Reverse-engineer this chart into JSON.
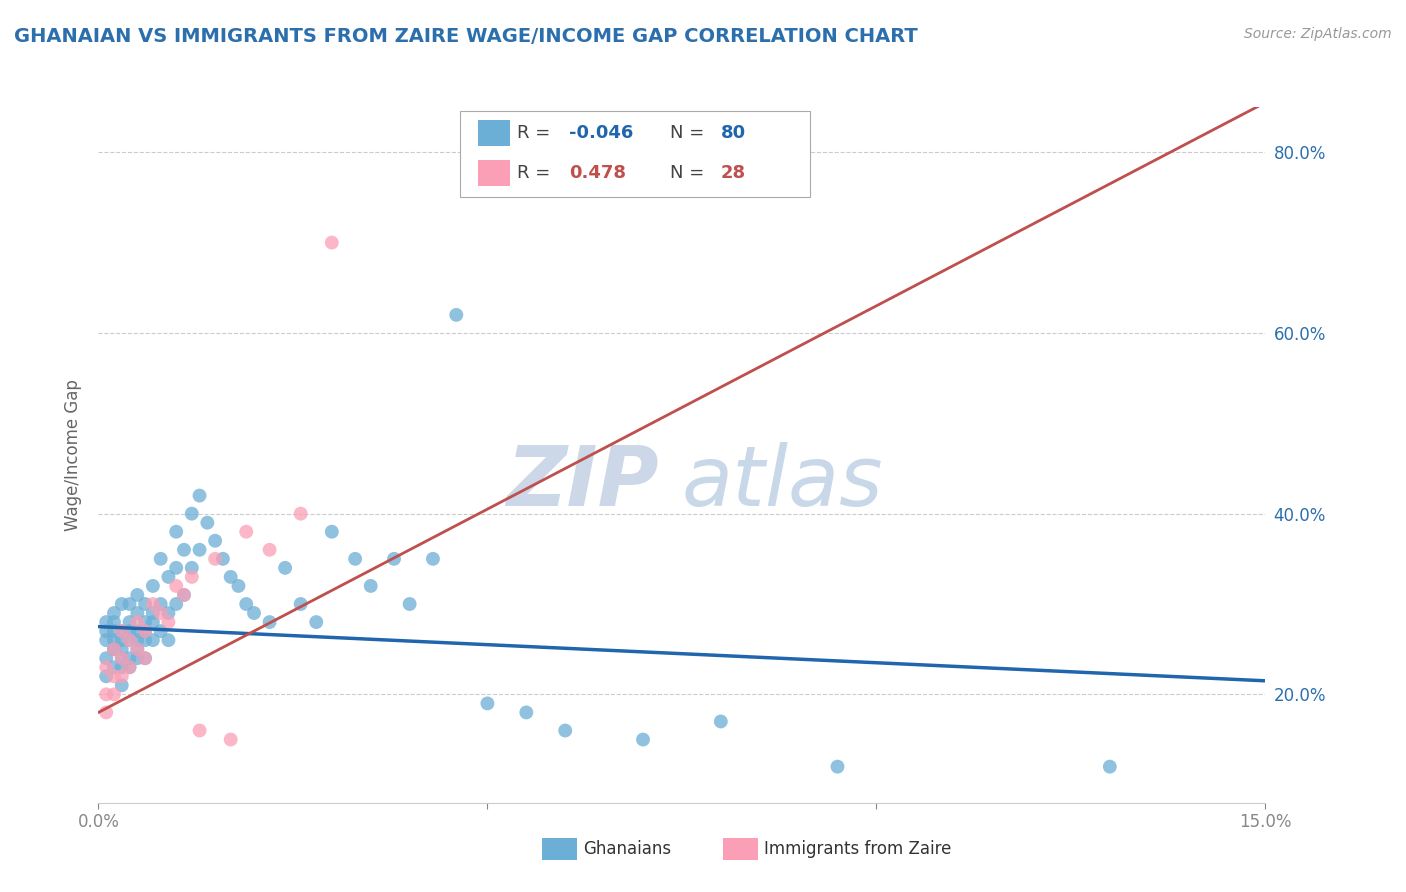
{
  "title": "GHANAIAN VS IMMIGRANTS FROM ZAIRE WAGE/INCOME GAP CORRELATION CHART",
  "source_text": "Source: ZipAtlas.com",
  "ylabel": "Wage/Income Gap",
  "watermark": "ZIPatlas",
  "xlim": [
    0.0,
    0.15
  ],
  "ylim": [
    0.08,
    0.85
  ],
  "yticks": [
    0.2,
    0.4,
    0.6,
    0.8
  ],
  "legend_R1": "-0.046",
  "legend_N1": "80",
  "legend_R2": "0.478",
  "legend_N2": "28",
  "color_blue": "#6baed6",
  "color_pink": "#fa9fb5",
  "color_trend_blue": "#2166ac",
  "color_trend_pink": "#c0504d",
  "color_trend_gray_dashed": "#bbbbcc",
  "title_color": "#2c6fad",
  "tick_color": "#2c6fad",
  "background_color": "#ffffff",
  "grid_color": "#cccccc",
  "watermark_color": "#ccd8e8",
  "ghanaian_x": [
    0.001,
    0.001,
    0.001,
    0.001,
    0.001,
    0.002,
    0.002,
    0.002,
    0.002,
    0.002,
    0.002,
    0.002,
    0.003,
    0.003,
    0.003,
    0.003,
    0.003,
    0.003,
    0.003,
    0.004,
    0.004,
    0.004,
    0.004,
    0.004,
    0.004,
    0.005,
    0.005,
    0.005,
    0.005,
    0.005,
    0.005,
    0.006,
    0.006,
    0.006,
    0.006,
    0.006,
    0.007,
    0.007,
    0.007,
    0.007,
    0.008,
    0.008,
    0.008,
    0.009,
    0.009,
    0.009,
    0.01,
    0.01,
    0.01,
    0.011,
    0.011,
    0.012,
    0.012,
    0.013,
    0.013,
    0.014,
    0.015,
    0.016,
    0.017,
    0.018,
    0.019,
    0.02,
    0.022,
    0.024,
    0.026,
    0.028,
    0.03,
    0.033,
    0.035,
    0.038,
    0.04,
    0.043,
    0.046,
    0.05,
    0.055,
    0.06,
    0.07,
    0.08,
    0.095,
    0.13
  ],
  "ghanaian_y": [
    0.27,
    0.28,
    0.24,
    0.26,
    0.22,
    0.27,
    0.25,
    0.29,
    0.23,
    0.26,
    0.28,
    0.25,
    0.24,
    0.27,
    0.3,
    0.26,
    0.23,
    0.21,
    0.25,
    0.28,
    0.26,
    0.24,
    0.3,
    0.27,
    0.23,
    0.29,
    0.25,
    0.27,
    0.31,
    0.26,
    0.24,
    0.28,
    0.3,
    0.26,
    0.24,
    0.27,
    0.32,
    0.29,
    0.26,
    0.28,
    0.35,
    0.3,
    0.27,
    0.33,
    0.29,
    0.26,
    0.38,
    0.34,
    0.3,
    0.36,
    0.31,
    0.4,
    0.34,
    0.42,
    0.36,
    0.39,
    0.37,
    0.35,
    0.33,
    0.32,
    0.3,
    0.29,
    0.28,
    0.34,
    0.3,
    0.28,
    0.38,
    0.35,
    0.32,
    0.35,
    0.3,
    0.35,
    0.62,
    0.19,
    0.18,
    0.16,
    0.15,
    0.17,
    0.12,
    0.12
  ],
  "zaire_x": [
    0.001,
    0.001,
    0.001,
    0.002,
    0.002,
    0.002,
    0.003,
    0.003,
    0.003,
    0.004,
    0.004,
    0.005,
    0.005,
    0.006,
    0.006,
    0.007,
    0.008,
    0.009,
    0.01,
    0.011,
    0.012,
    0.013,
    0.015,
    0.017,
    0.019,
    0.022,
    0.026,
    0.03
  ],
  "zaire_y": [
    0.2,
    0.23,
    0.18,
    0.22,
    0.25,
    0.2,
    0.24,
    0.27,
    0.22,
    0.26,
    0.23,
    0.28,
    0.25,
    0.24,
    0.27,
    0.3,
    0.29,
    0.28,
    0.32,
    0.31,
    0.33,
    0.16,
    0.35,
    0.15,
    0.38,
    0.36,
    0.4,
    0.7
  ]
}
